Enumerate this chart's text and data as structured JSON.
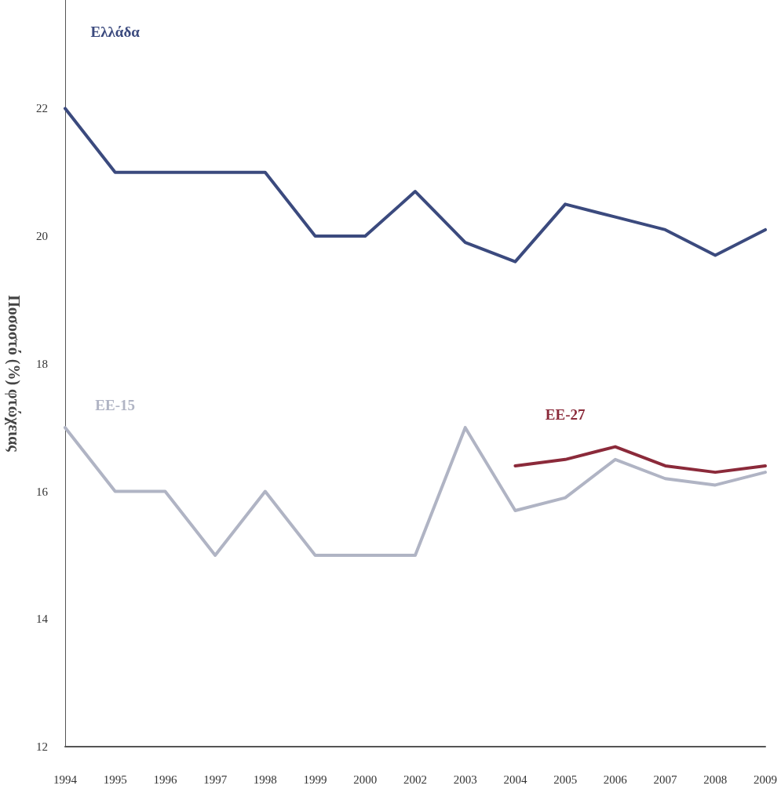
{
  "chart_data": {
    "type": "line",
    "ylabel": "Ποσοστό (%) φτώχειας",
    "categories": [
      "1994",
      "1995",
      "1996",
      "1997",
      "1998",
      "1999",
      "2000",
      "2002",
      "2003",
      "2004",
      "2005",
      "2006",
      "2007",
      "2008",
      "2009"
    ],
    "series": [
      {
        "name": "Ελλάδα",
        "color": "#3b4a7e",
        "values": [
          22,
          21,
          21,
          21,
          21,
          20,
          20,
          20.7,
          19.9,
          19.6,
          20.5,
          20.3,
          20.1,
          19.7,
          20.1
        ]
      },
      {
        "name": "ΕΕ-15",
        "color": "#b0b4c4",
        "values": [
          17,
          16,
          16,
          15,
          16,
          15,
          15,
          15,
          17,
          15.7,
          15.9,
          16.5,
          16.2,
          16.1,
          16.3
        ]
      },
      {
        "name": "ΕΕ-27",
        "color": "#8b2a3a",
        "values": [
          null,
          null,
          null,
          null,
          null,
          null,
          null,
          null,
          null,
          16.4,
          16.5,
          16.7,
          16.4,
          16.3,
          16.4
        ]
      }
    ],
    "ylim": [
      12,
      23.7
    ],
    "yticks": [
      12,
      14,
      16,
      18,
      20,
      22
    ],
    "grid": false,
    "legend": false,
    "marker": "none",
    "line_style": "solid"
  }
}
